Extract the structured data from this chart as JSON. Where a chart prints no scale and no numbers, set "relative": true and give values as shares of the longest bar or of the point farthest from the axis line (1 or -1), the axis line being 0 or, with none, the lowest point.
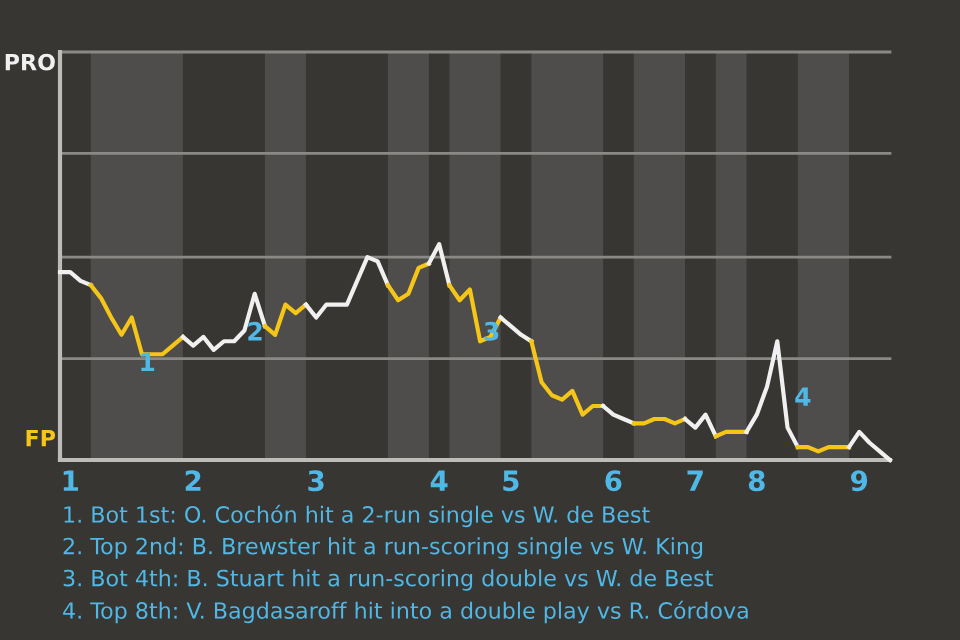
{
  "chart_data": {
    "type": "line",
    "relative": true,
    "categories": [
      null,
      "1",
      null,
      null,
      null,
      null,
      null,
      null,
      null,
      null,
      null,
      null,
      null,
      "2",
      null,
      null,
      null,
      null,
      null,
      null,
      null,
      null,
      null,
      null,
      null,
      "3",
      null,
      null,
      null,
      null,
      null,
      null,
      null,
      null,
      null,
      null,
      null,
      "4",
      null,
      null,
      null,
      null,
      null,
      null,
      "5",
      null,
      null,
      null,
      null,
      null,
      null,
      null,
      null,
      null,
      "6",
      null,
      null,
      null,
      null,
      null,
      null,
      null,
      "7",
      null,
      null,
      null,
      null,
      null,
      "8",
      null,
      null,
      null,
      null,
      null,
      null,
      null,
      null,
      null,
      "9",
      null,
      null,
      null
    ],
    "series": [
      {
        "color": "#f0f0f0",
        "values": [
          0.87,
          0.87,
          0.83,
          0.81,
          null,
          null,
          null,
          null,
          null,
          null,
          null,
          null,
          null,
          null,
          null,
          null,
          null,
          null,
          null,
          null,
          null,
          null,
          null,
          null,
          null,
          null,
          null,
          null,
          null,
          null,
          null,
          null,
          null,
          null,
          null,
          null,
          null,
          null,
          null,
          null,
          null,
          null,
          null,
          null,
          null,
          null,
          null,
          null,
          null,
          null,
          null,
          null,
          null,
          null,
          null,
          null,
          null,
          null,
          null,
          null,
          null,
          null,
          null,
          null,
          null,
          null,
          null,
          null,
          null,
          null,
          null,
          null,
          null,
          null,
          null,
          null,
          null,
          null,
          null,
          null,
          null,
          null
        ]
      },
      {
        "color": "#f5c518",
        "values": [
          null,
          null,
          null,
          0.81,
          0.75,
          0.66,
          0.58,
          0.66,
          0.49,
          0.49,
          0.49,
          0.53,
          0.57,
          null,
          null,
          null,
          null,
          null,
          null,
          null,
          null,
          null,
          null,
          null,
          null,
          null,
          null,
          null,
          null,
          null,
          null,
          null,
          null,
          null,
          null,
          null,
          null,
          null,
          null,
          null,
          null,
          null,
          null,
          null,
          null,
          null,
          null,
          null,
          null,
          null,
          null,
          null,
          null,
          null,
          null,
          null,
          null,
          null,
          null,
          null,
          null,
          null,
          null,
          null,
          null,
          null,
          null,
          null,
          null,
          null,
          null,
          null,
          null,
          null,
          null,
          null,
          null,
          null,
          null,
          null,
          null,
          null
        ]
      },
      {
        "color": "#f0f0f0",
        "values": [
          null,
          null,
          null,
          null,
          null,
          null,
          null,
          null,
          null,
          null,
          null,
          null,
          0.57,
          0.53,
          0.57,
          0.51,
          0.55,
          0.55,
          0.6,
          0.77,
          0.62,
          null,
          null,
          null,
          null,
          null,
          null,
          null,
          null,
          null,
          null,
          null,
          null,
          null,
          null,
          null,
          null,
          null,
          null,
          null,
          null,
          null,
          null,
          null,
          null,
          null,
          null,
          null,
          null,
          null,
          null,
          null,
          null,
          null,
          null,
          null,
          null,
          null,
          null,
          null,
          null,
          null,
          null,
          null,
          null,
          null,
          null,
          null,
          null,
          null,
          null,
          null,
          null,
          null,
          null,
          null,
          null,
          null,
          null,
          null,
          null,
          null
        ]
      },
      {
        "color": "#f5c518",
        "values": [
          null,
          null,
          null,
          null,
          null,
          null,
          null,
          null,
          null,
          null,
          null,
          null,
          null,
          null,
          null,
          null,
          null,
          null,
          null,
          null,
          0.62,
          0.58,
          0.72,
          0.68,
          0.72,
          null,
          null,
          null,
          null,
          null,
          null,
          null,
          null,
          null,
          null,
          null,
          null,
          null,
          null,
          null,
          null,
          null,
          null,
          null,
          null,
          null,
          null,
          null,
          null,
          null,
          null,
          null,
          null,
          null,
          null,
          null,
          null,
          null,
          null,
          null,
          null,
          null,
          null,
          null,
          null,
          null,
          null,
          null,
          null,
          null,
          null,
          null,
          null,
          null,
          null,
          null,
          null,
          null,
          null,
          null,
          null,
          null
        ]
      },
      {
        "color": "#f0f0f0",
        "values": [
          null,
          null,
          null,
          null,
          null,
          null,
          null,
          null,
          null,
          null,
          null,
          null,
          null,
          null,
          null,
          null,
          null,
          null,
          null,
          null,
          null,
          null,
          null,
          null,
          0.72,
          0.66,
          0.72,
          0.72,
          0.72,
          0.83,
          0.94,
          0.92,
          0.81,
          null,
          null,
          null,
          null,
          null,
          null,
          null,
          null,
          null,
          null,
          null,
          null,
          null,
          null,
          null,
          null,
          null,
          null,
          null,
          null,
          null,
          null,
          null,
          null,
          null,
          null,
          null,
          null,
          null,
          null,
          null,
          null,
          null,
          null,
          null,
          null,
          null,
          null,
          null,
          null,
          null,
          null,
          null,
          null,
          null,
          null,
          null,
          null,
          null
        ]
      },
      {
        "color": "#f5c518",
        "values": [
          null,
          null,
          null,
          null,
          null,
          null,
          null,
          null,
          null,
          null,
          null,
          null,
          null,
          null,
          null,
          null,
          null,
          null,
          null,
          null,
          null,
          null,
          null,
          null,
          null,
          null,
          null,
          null,
          null,
          null,
          null,
          null,
          0.81,
          0.74,
          0.77,
          0.89,
          0.91,
          null,
          null,
          null,
          null,
          null,
          null,
          null,
          null,
          null,
          null,
          null,
          null,
          null,
          null,
          null,
          null,
          null,
          null,
          null,
          null,
          null,
          null,
          null,
          null,
          null,
          null,
          null,
          null,
          null,
          null,
          null,
          null,
          null,
          null,
          null,
          null,
          null,
          null,
          null,
          null,
          null,
          null,
          null,
          null,
          null
        ]
      },
      {
        "color": "#f0f0f0",
        "values": [
          null,
          null,
          null,
          null,
          null,
          null,
          null,
          null,
          null,
          null,
          null,
          null,
          null,
          null,
          null,
          null,
          null,
          null,
          null,
          null,
          null,
          null,
          null,
          null,
          null,
          null,
          null,
          null,
          null,
          null,
          null,
          null,
          null,
          null,
          null,
          null,
          0.91,
          1.0,
          0.81,
          null,
          null,
          null,
          null,
          null,
          null,
          null,
          null,
          null,
          null,
          null,
          null,
          null,
          null,
          null,
          null,
          null,
          null,
          null,
          null,
          null,
          null,
          null,
          null,
          null,
          null,
          null,
          null,
          null,
          null,
          null,
          null,
          null,
          null,
          null,
          null,
          null,
          null,
          null,
          null,
          null,
          null,
          null
        ]
      },
      {
        "color": "#f5c518",
        "values": [
          null,
          null,
          null,
          null,
          null,
          null,
          null,
          null,
          null,
          null,
          null,
          null,
          null,
          null,
          null,
          null,
          null,
          null,
          null,
          null,
          null,
          null,
          null,
          null,
          null,
          null,
          null,
          null,
          null,
          null,
          null,
          null,
          null,
          null,
          null,
          null,
          null,
          null,
          0.81,
          0.74,
          0.79,
          0.55,
          0.57,
          0.66,
          null,
          null,
          null,
          null,
          null,
          null,
          null,
          null,
          null,
          null,
          null,
          null,
          null,
          null,
          null,
          null,
          null,
          null,
          null,
          null,
          null,
          null,
          null,
          null,
          null,
          null,
          null,
          null,
          null,
          null,
          null,
          null,
          null,
          null,
          null,
          null,
          null,
          null
        ]
      },
      {
        "color": "#f0f0f0",
        "values": [
          null,
          null,
          null,
          null,
          null,
          null,
          null,
          null,
          null,
          null,
          null,
          null,
          null,
          null,
          null,
          null,
          null,
          null,
          null,
          null,
          null,
          null,
          null,
          null,
          null,
          null,
          null,
          null,
          null,
          null,
          null,
          null,
          null,
          null,
          null,
          null,
          null,
          null,
          null,
          null,
          null,
          null,
          null,
          0.66,
          0.62,
          0.58,
          0.55,
          null,
          null,
          null,
          null,
          null,
          null,
          null,
          null,
          null,
          null,
          null,
          null,
          null,
          null,
          null,
          null,
          null,
          null,
          null,
          null,
          null,
          null,
          null,
          null,
          null,
          null,
          null,
          null,
          null,
          null,
          null,
          null,
          null,
          null,
          null
        ]
      },
      {
        "color": "#f5c518",
        "values": [
          null,
          null,
          null,
          null,
          null,
          null,
          null,
          null,
          null,
          null,
          null,
          null,
          null,
          null,
          null,
          null,
          null,
          null,
          null,
          null,
          null,
          null,
          null,
          null,
          null,
          null,
          null,
          null,
          null,
          null,
          null,
          null,
          null,
          null,
          null,
          null,
          null,
          null,
          null,
          null,
          null,
          null,
          null,
          null,
          null,
          null,
          0.55,
          0.36,
          0.3,
          0.28,
          0.32,
          0.21,
          0.25,
          0.25,
          null,
          null,
          null,
          null,
          null,
          null,
          null,
          null,
          null,
          null,
          null,
          null,
          null,
          null,
          null,
          null,
          null,
          null,
          null,
          null,
          null,
          null,
          null,
          null,
          null,
          null,
          null,
          null
        ]
      },
      {
        "color": "#f0f0f0",
        "values": [
          null,
          null,
          null,
          null,
          null,
          null,
          null,
          null,
          null,
          null,
          null,
          null,
          null,
          null,
          null,
          null,
          null,
          null,
          null,
          null,
          null,
          null,
          null,
          null,
          null,
          null,
          null,
          null,
          null,
          null,
          null,
          null,
          null,
          null,
          null,
          null,
          null,
          null,
          null,
          null,
          null,
          null,
          null,
          null,
          null,
          null,
          null,
          null,
          null,
          null,
          null,
          null,
          null,
          0.25,
          0.21,
          0.19,
          0.17,
          null,
          null,
          null,
          null,
          null,
          null,
          null,
          null,
          null,
          null,
          null,
          null,
          null,
          null,
          null,
          null,
          null,
          null,
          null,
          null,
          null,
          null,
          null,
          null,
          null
        ]
      },
      {
        "color": "#f5c518",
        "values": [
          null,
          null,
          null,
          null,
          null,
          null,
          null,
          null,
          null,
          null,
          null,
          null,
          null,
          null,
          null,
          null,
          null,
          null,
          null,
          null,
          null,
          null,
          null,
          null,
          null,
          null,
          null,
          null,
          null,
          null,
          null,
          null,
          null,
          null,
          null,
          null,
          null,
          null,
          null,
          null,
          null,
          null,
          null,
          null,
          null,
          null,
          null,
          null,
          null,
          null,
          null,
          null,
          null,
          null,
          null,
          null,
          0.17,
          0.17,
          0.19,
          0.19,
          0.17,
          0.19,
          null,
          null,
          null,
          null,
          null,
          null,
          null,
          null,
          null,
          null,
          null,
          null,
          null,
          null,
          null,
          null,
          null,
          null,
          null,
          null
        ]
      },
      {
        "color": "#f0f0f0",
        "values": [
          null,
          null,
          null,
          null,
          null,
          null,
          null,
          null,
          null,
          null,
          null,
          null,
          null,
          null,
          null,
          null,
          null,
          null,
          null,
          null,
          null,
          null,
          null,
          null,
          null,
          null,
          null,
          null,
          null,
          null,
          null,
          null,
          null,
          null,
          null,
          null,
          null,
          null,
          null,
          null,
          null,
          null,
          null,
          null,
          null,
          null,
          null,
          null,
          null,
          null,
          null,
          null,
          null,
          null,
          null,
          null,
          null,
          null,
          null,
          null,
          null,
          0.19,
          0.15,
          0.21,
          0.11,
          null,
          null,
          null,
          null,
          null,
          null,
          null,
          null,
          null,
          null,
          null,
          null,
          null,
          null,
          null,
          null,
          null
        ]
      },
      {
        "color": "#f5c518",
        "values": [
          null,
          null,
          null,
          null,
          null,
          null,
          null,
          null,
          null,
          null,
          null,
          null,
          null,
          null,
          null,
          null,
          null,
          null,
          null,
          null,
          null,
          null,
          null,
          null,
          null,
          null,
          null,
          null,
          null,
          null,
          null,
          null,
          null,
          null,
          null,
          null,
          null,
          null,
          null,
          null,
          null,
          null,
          null,
          null,
          null,
          null,
          null,
          null,
          null,
          null,
          null,
          null,
          null,
          null,
          null,
          null,
          null,
          null,
          null,
          null,
          null,
          null,
          null,
          null,
          0.11,
          0.13,
          0.13,
          0.13,
          null,
          null,
          null,
          null,
          null,
          null,
          null,
          null,
          null,
          null,
          null,
          null,
          null,
          null
        ]
      },
      {
        "color": "#f0f0f0",
        "values": [
          null,
          null,
          null,
          null,
          null,
          null,
          null,
          null,
          null,
          null,
          null,
          null,
          null,
          null,
          null,
          null,
          null,
          null,
          null,
          null,
          null,
          null,
          null,
          null,
          null,
          null,
          null,
          null,
          null,
          null,
          null,
          null,
          null,
          null,
          null,
          null,
          null,
          null,
          null,
          null,
          null,
          null,
          null,
          null,
          null,
          null,
          null,
          null,
          null,
          null,
          null,
          null,
          null,
          null,
          null,
          null,
          null,
          null,
          null,
          null,
          null,
          null,
          null,
          null,
          null,
          null,
          null,
          0.13,
          0.21,
          0.34,
          0.55,
          0.15,
          0.06,
          null,
          null,
          null,
          null,
          null,
          null,
          null,
          null,
          null
        ]
      },
      {
        "color": "#f5c518",
        "values": [
          null,
          null,
          null,
          null,
          null,
          null,
          null,
          null,
          null,
          null,
          null,
          null,
          null,
          null,
          null,
          null,
          null,
          null,
          null,
          null,
          null,
          null,
          null,
          null,
          null,
          null,
          null,
          null,
          null,
          null,
          null,
          null,
          null,
          null,
          null,
          null,
          null,
          null,
          null,
          null,
          null,
          null,
          null,
          null,
          null,
          null,
          null,
          null,
          null,
          null,
          null,
          null,
          null,
          null,
          null,
          null,
          null,
          null,
          null,
          null,
          null,
          null,
          null,
          null,
          null,
          null,
          null,
          null,
          null,
          null,
          null,
          null,
          0.06,
          0.06,
          0.04,
          0.06,
          0.06,
          0.06,
          null,
          null,
          null,
          null
        ]
      },
      {
        "color": "#f0f0f0",
        "values": [
          null,
          null,
          null,
          null,
          null,
          null,
          null,
          null,
          null,
          null,
          null,
          null,
          null,
          null,
          null,
          null,
          null,
          null,
          null,
          null,
          null,
          null,
          null,
          null,
          null,
          null,
          null,
          null,
          null,
          null,
          null,
          null,
          null,
          null,
          null,
          null,
          null,
          null,
          null,
          null,
          null,
          null,
          null,
          null,
          null,
          null,
          null,
          null,
          null,
          null,
          null,
          null,
          null,
          null,
          null,
          null,
          null,
          null,
          null,
          null,
          null,
          null,
          null,
          null,
          null,
          null,
          null,
          null,
          null,
          null,
          null,
          null,
          null,
          null,
          null,
          null,
          null,
          0.06,
          0.13,
          0.08,
          0.04,
          0
        ]
      }
    ],
    "legend": false,
    "ref_lines": [
      {
        "axis": "y",
        "value": 0.47,
        "color": "#8a8986"
      },
      {
        "axis": "y",
        "value": 0.94,
        "color": "#8a8986"
      },
      {
        "axis": "y",
        "value": 1.42,
        "color": "#8a8986"
      },
      {
        "axis": "y",
        "value": 1.89,
        "color": "#8a8986"
      }
    ],
    "annotations": [
      "1",
      "2",
      "3",
      "4",
      "PRO",
      "FP",
      "1. Bot 1st: O. Cochón hit a 2-run single vs W. de Best",
      "2. Top 2nd: B. Brewster hit a run-scoring single vs W. King",
      "3. Bot 4th: B. Stuart hit a run-scoring double vs W. de Best",
      "4. Top 8th: V. Bagdasaroff hit into a double play vs R. Córdova"
    ]
  }
}
